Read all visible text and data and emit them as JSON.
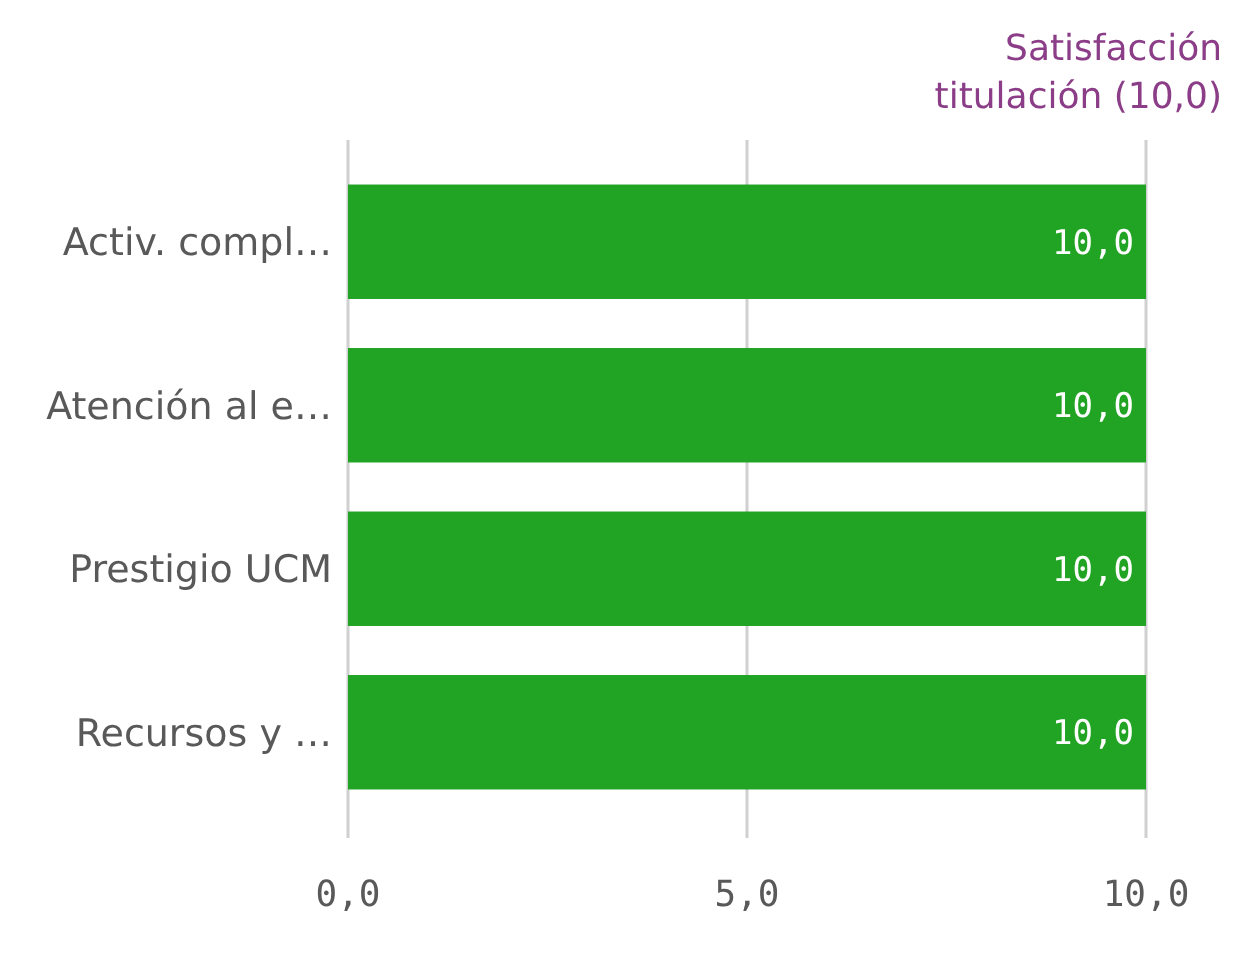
{
  "chart_data": {
    "type": "bar",
    "orientation": "horizontal",
    "title": "Satisfacción titulación (10,0)",
    "categories": [
      "Activ. compl…",
      "Atención al e…",
      "Prestigio UCM",
      "Recursos y …"
    ],
    "values": [
      10,
      10,
      10,
      10
    ],
    "color": "#21a323",
    "value_labels": [
      "10,0",
      "10,0",
      "10,0",
      "10,0"
    ],
    "xlim": [
      0,
      10
    ],
    "xticks": [
      {
        "value": 0,
        "label": "0,0"
      },
      {
        "value": 5,
        "label": "5,0"
      },
      {
        "value": 10,
        "label": "10,0"
      }
    ],
    "grid": "x"
  }
}
